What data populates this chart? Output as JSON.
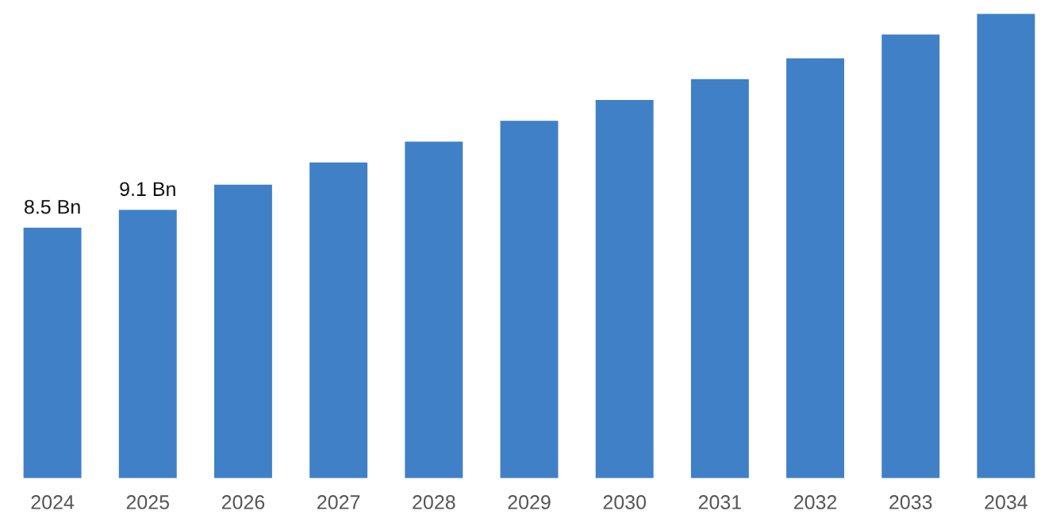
{
  "chart_data": {
    "type": "bar",
    "categories": [
      "2024",
      "2025",
      "2026",
      "2027",
      "2028",
      "2029",
      "2030",
      "2031",
      "2032",
      "2033",
      "2034"
    ],
    "values": [
      8.5,
      9.1,
      9.95,
      10.7,
      11.4,
      12.1,
      12.8,
      13.5,
      14.2,
      15.0,
      15.7
    ],
    "value_labels": [
      "8.5 Bn",
      "9.1 Bn",
      null,
      null,
      null,
      null,
      null,
      null,
      null,
      null,
      null
    ],
    "color": "#4080c6",
    "grid": false,
    "legend": false
  }
}
